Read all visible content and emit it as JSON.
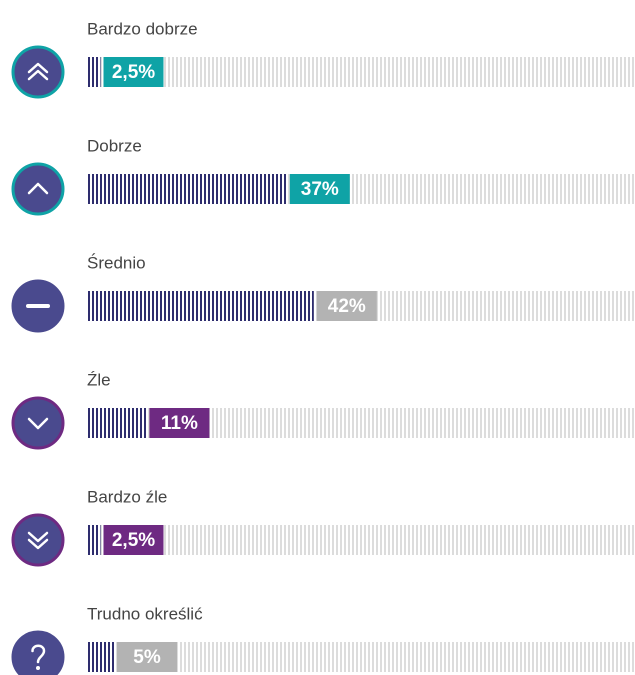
{
  "chart_data": {
    "type": "bar",
    "categories": [
      "Bardzo dobrze",
      "Dobrze",
      "Średnio",
      "Źle",
      "Bardzo źle",
      "Trudno określić"
    ],
    "values": [
      2.5,
      37,
      42,
      11,
      2.5,
      5
    ],
    "value_labels": [
      "2,5%",
      "37%",
      "42%",
      "11%",
      "2,5%",
      "5%"
    ],
    "colors": [
      "#0fa3a6",
      "#0fa3a6",
      "#b3b3b3",
      "#6e2a82",
      "#6e2a82",
      "#b3b3b3"
    ],
    "ring_colors": [
      "#0fa3a6",
      "#0fa3a6",
      "#4a4a8e",
      "#6e2a82",
      "#6e2a82",
      "#4a4a8e"
    ],
    "bar_color": "#2e2d6e",
    "track_color": "#dcdcdc"
  }
}
